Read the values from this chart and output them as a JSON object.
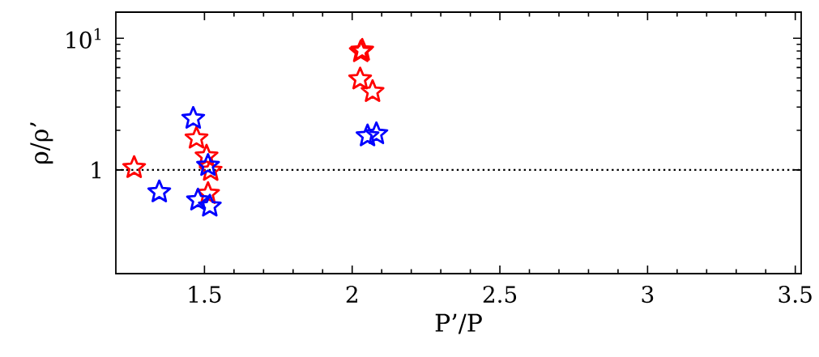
{
  "chart_data": {
    "type": "scatter",
    "xlabel": "P’/P",
    "ylabel": "ρ/ρ’",
    "xlim": [
      1.2,
      3.52
    ],
    "ylim": [
      0.163,
      15.8
    ],
    "log": "y",
    "xticks": [
      1.5,
      2,
      2.5,
      3,
      3.5
    ],
    "yticks": [
      1,
      {
        "value": 10,
        "label": "10$^{1}$"
      }
    ],
    "marker": "star",
    "legend": false,
    "grid": false,
    "ref_lines": [
      {
        "axis": "y",
        "value": 1,
        "line_style": "dotted",
        "color": "#000000"
      }
    ],
    "series": [
      {
        "color": "#ff0000",
        "x": [
          1.262,
          1.473,
          1.507,
          1.521,
          1.512,
          2.029,
          2.034,
          2.027,
          2.069
        ],
        "values": [
          1.04,
          1.74,
          1.27,
          0.99,
          0.66,
          7.9,
          8.1,
          4.9,
          3.93
        ]
      },
      {
        "color": "#0000ff",
        "x": [
          1.347,
          1.462,
          1.512,
          1.478,
          1.518,
          2.052,
          2.082
        ],
        "values": [
          0.68,
          2.46,
          1.08,
          0.59,
          0.53,
          1.81,
          1.88
        ]
      }
    ]
  }
}
